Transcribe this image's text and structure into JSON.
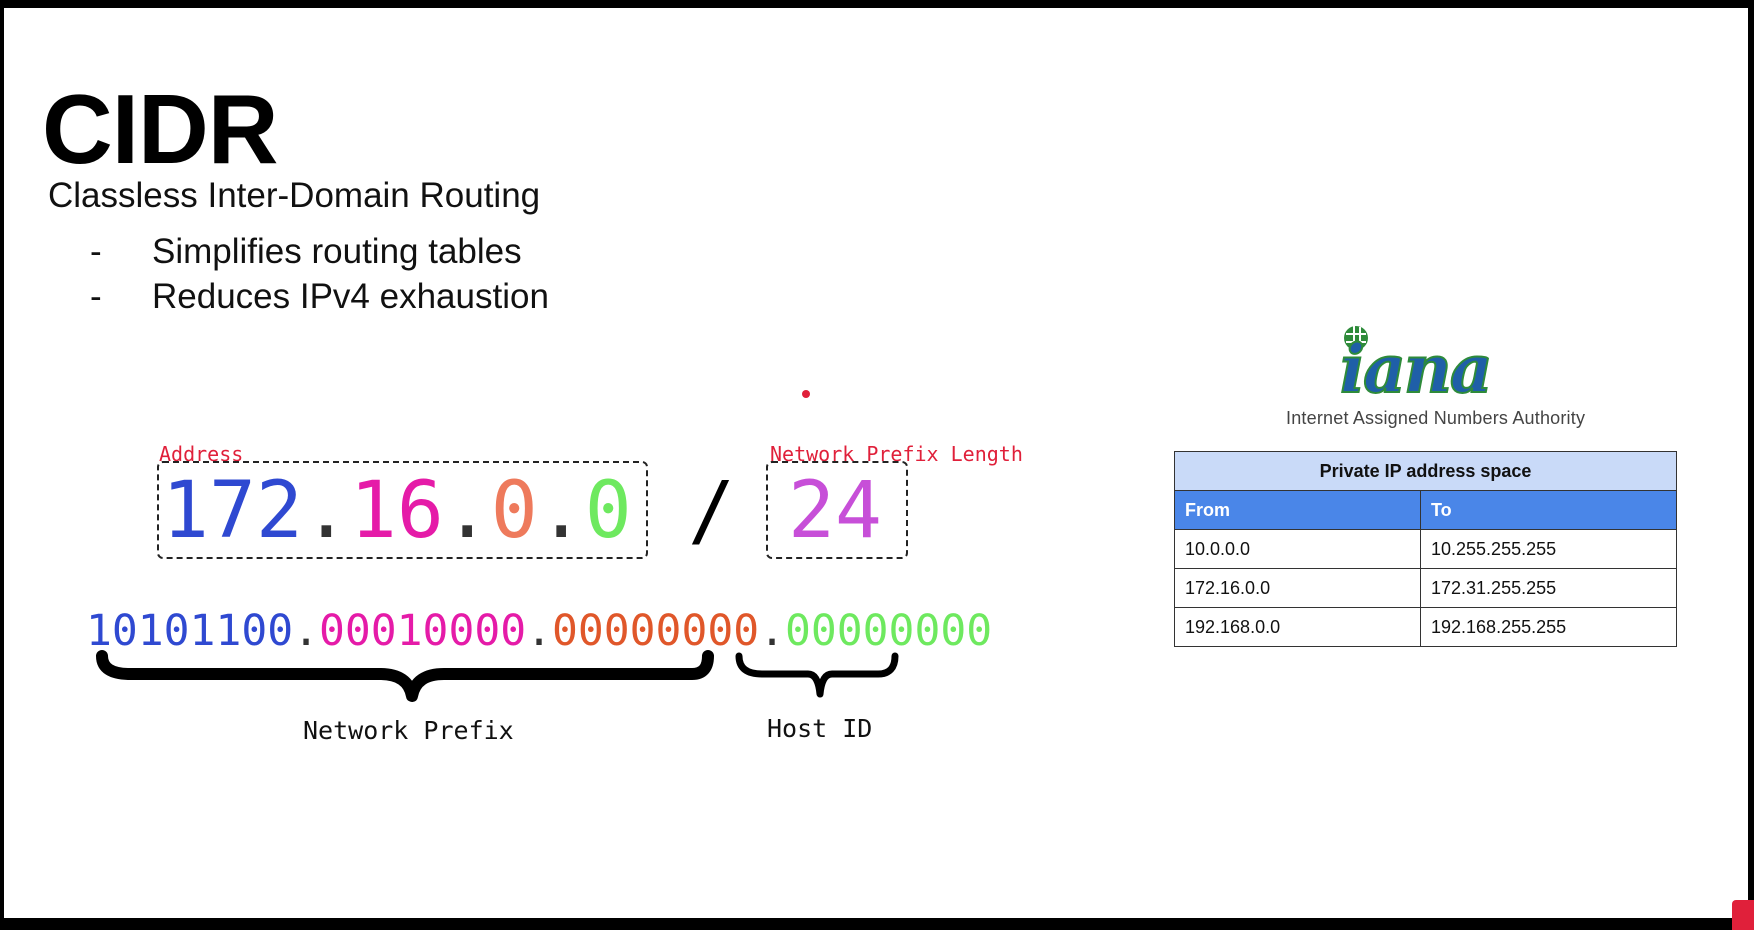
{
  "slide": {
    "title": "CIDR",
    "subtitle": "Classless Inter-Domain Routing",
    "bullets": [
      {
        "dash": "-",
        "text": "Simplifies routing tables"
      },
      {
        "dash": "-",
        "text": "Reduces IPv4 exhaustion"
      }
    ]
  },
  "diagram": {
    "address_label": "Address",
    "prefix_length_label": "Network Prefix Length",
    "octets": [
      "172",
      "16",
      "0",
      "0"
    ],
    "octet_colors": [
      "#2f49d1",
      "#e51ba8",
      "#ee7a5c",
      "#6ee95f"
    ],
    "dot": ".",
    "slash": "/",
    "prefix_length": "24",
    "binary_octets": [
      "10101100",
      "00010000",
      "00000000",
      "00000000"
    ],
    "binary_colors": [
      "#2f49d1",
      "#e51ba8",
      "#e0572a",
      "#6ee95f"
    ],
    "network_prefix_label": "Network Prefix",
    "host_id_label": "Host ID"
  },
  "iana": {
    "logo_text": "iana",
    "caption": "Internet Assigned Numbers Authority"
  },
  "table": {
    "caption": "Private IP address space",
    "headers": [
      "From",
      "To"
    ],
    "rows": [
      [
        "10.0.0.0",
        "10.255.255.255"
      ],
      [
        "172.16.0.0",
        "172.31.255.255"
      ],
      [
        "192.168.0.0",
        "192.168.255.255"
      ]
    ]
  }
}
